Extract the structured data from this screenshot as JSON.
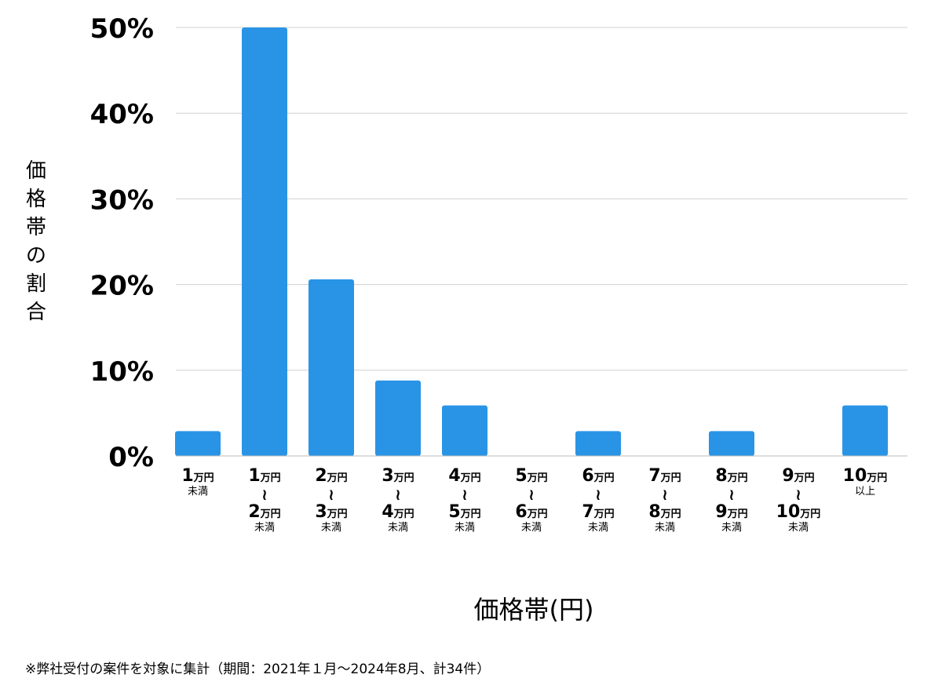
{
  "chart_data": {
    "type": "bar",
    "ylabel": "価格帯の割合",
    "xlabel": "価格帯(円)",
    "ylim": [
      0,
      50
    ],
    "yticks": [
      "0%",
      "10%",
      "20%",
      "30%",
      "40%",
      "50%"
    ],
    "grid": true,
    "bar_color": "#2994e6",
    "categories": [
      {
        "from": "1",
        "from_unit": "万円",
        "to": "",
        "to_unit": "",
        "suffix": "未満"
      },
      {
        "from": "1",
        "from_unit": "万円",
        "to": "2",
        "to_unit": "万円",
        "suffix": "未満"
      },
      {
        "from": "2",
        "from_unit": "万円",
        "to": "3",
        "to_unit": "万円",
        "suffix": "未満"
      },
      {
        "from": "3",
        "from_unit": "万円",
        "to": "4",
        "to_unit": "万円",
        "suffix": "未満"
      },
      {
        "from": "4",
        "from_unit": "万円",
        "to": "5",
        "to_unit": "万円",
        "suffix": "未満"
      },
      {
        "from": "5",
        "from_unit": "万円",
        "to": "6",
        "to_unit": "万円",
        "suffix": "未満"
      },
      {
        "from": "6",
        "from_unit": "万円",
        "to": "7",
        "to_unit": "万円",
        "suffix": "未満"
      },
      {
        "from": "7",
        "from_unit": "万円",
        "to": "8",
        "to_unit": "万円",
        "suffix": "未満"
      },
      {
        "from": "8",
        "from_unit": "万円",
        "to": "9",
        "to_unit": "万円",
        "suffix": "未満"
      },
      {
        "from": "9",
        "from_unit": "万円",
        "to": "10",
        "to_unit": "万円",
        "suffix": "未満"
      },
      {
        "from": "10",
        "from_unit": "万円",
        "to": "",
        "to_unit": "",
        "suffix": "以上"
      }
    ],
    "values": [
      2.9,
      50,
      20.6,
      8.8,
      5.9,
      0,
      2.9,
      0,
      2.9,
      0,
      5.9
    ],
    "range_mark": "〜"
  },
  "footnote": "※弊社受付の案件を対象に集計（期間：2021年１月〜2024年8月、計34件）"
}
